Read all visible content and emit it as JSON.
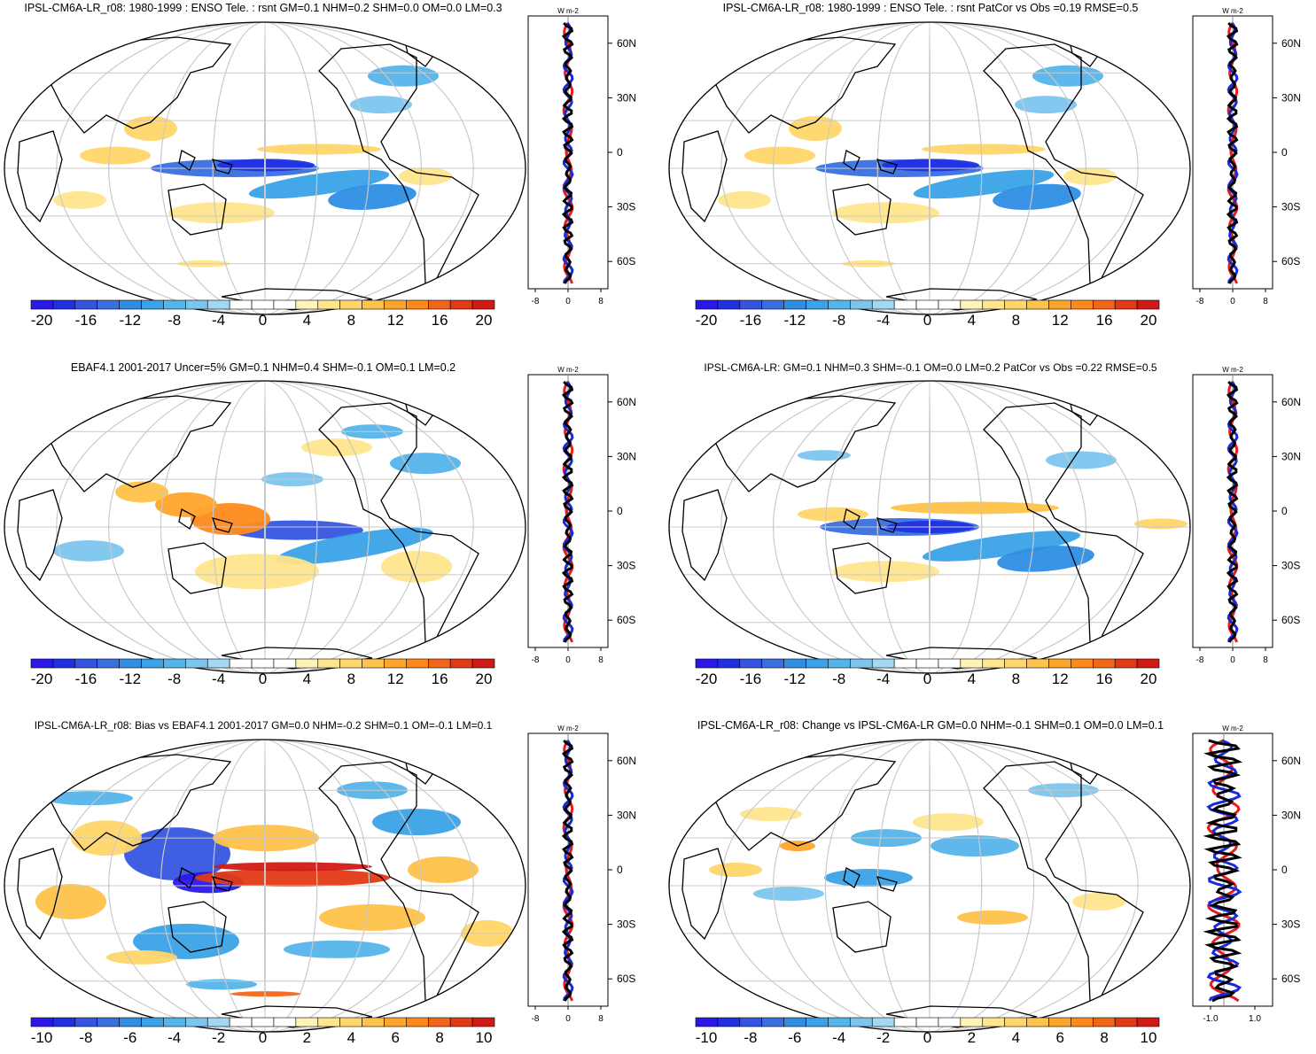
{
  "units": "W m-2",
  "lat_labels": [
    "60N",
    "30N",
    "0",
    "30S",
    "60S"
  ],
  "colors": {
    "neg": [
      "#2a18e8",
      "#1f30e0",
      "#3555e0",
      "#3a6fe0",
      "#2f8ee4",
      "#3aa2e6",
      "#55b4ea",
      "#7cc6ee",
      "#a3d8f4"
    ],
    "pos": [
      "#fff3b8",
      "#ffe58c",
      "#ffd66a",
      "#ffc24a",
      "#ffa52c",
      "#ff8a1c",
      "#f2661a",
      "#e33a16",
      "#cf1a16"
    ],
    "land": "#000000",
    "grid": "#c9c9c9",
    "obs_line": "#e81c1c",
    "model_line": "#1a2ad8",
    "ref_line": "#000000"
  },
  "panels": [
    {
      "title": "IPSL-CM6A-LR_r08: 1980-1999 : ENSO Tele. : rsnt GM=0.1 NHM=0.2 SHM=0.0 OM=0.0 LM=0.3",
      "cbar_labels": [
        "-20",
        "-16",
        "-12",
        "-8",
        "-4",
        "0",
        "4",
        "8",
        "12",
        "16",
        "20"
      ],
      "profile_ticks": [
        "-8",
        "0",
        "8"
      ],
      "variant": "enso_model"
    },
    {
      "title": "IPSL-CM6A-LR_r08: 1980-1999 : ENSO Tele. : rsnt PatCor vs Obs =0.19 RMSE=0.5",
      "cbar_labels": [
        "-20",
        "-16",
        "-12",
        "-8",
        "-4",
        "0",
        "4",
        "8",
        "12",
        "16",
        "20"
      ],
      "profile_ticks": [
        "-8",
        "0",
        "8"
      ],
      "variant": "enso_model"
    },
    {
      "title": "EBAF4.1 2001-2017 Uncer=5% GM=0.1 NHM=0.4 SHM=-0.1 OM=0.1 LM=0.2",
      "cbar_labels": [
        "-20",
        "-16",
        "-12",
        "-8",
        "-4",
        "0",
        "4",
        "8",
        "12",
        "16",
        "20"
      ],
      "profile_ticks": [
        "-8",
        "0",
        "8"
      ],
      "variant": "obs"
    },
    {
      "title": "IPSL-CM6A-LR: GM=0.1 NHM=0.3 SHM=-0.1 OM=0.0 LM=0.2 PatCor vs Obs =0.22 RMSE=0.5",
      "cbar_labels": [
        "-20",
        "-16",
        "-12",
        "-8",
        "-4",
        "0",
        "4",
        "8",
        "12",
        "16",
        "20"
      ],
      "profile_ticks": [
        "-8",
        "0",
        "8"
      ],
      "variant": "enso_ref"
    },
    {
      "title": "IPSL-CM6A-LR_r08: Bias vs EBAF4.1 2001-2017 GM=0.0 NHM=-0.2 SHM=0.1 OM=-0.1 LM=0.1",
      "cbar_labels": [
        "-10",
        "-8",
        "-6",
        "-4",
        "-2",
        "0",
        "2",
        "4",
        "6",
        "8",
        "10"
      ],
      "profile_ticks": [
        "-8",
        "0",
        "8"
      ],
      "variant": "bias"
    },
    {
      "title": "IPSL-CM6A-LR_r08: Change vs IPSL-CM6A-LR GM=0.0 NHM=-0.1 SHM=0.1 OM=0.0 LM=0.1",
      "cbar_labels": [
        "-10",
        "-8",
        "-6",
        "-4",
        "-2",
        "0",
        "2",
        "4",
        "6",
        "8",
        "10"
      ],
      "profile_ticks": [
        "-1.0",
        "1.0"
      ],
      "variant": "change"
    }
  ]
}
